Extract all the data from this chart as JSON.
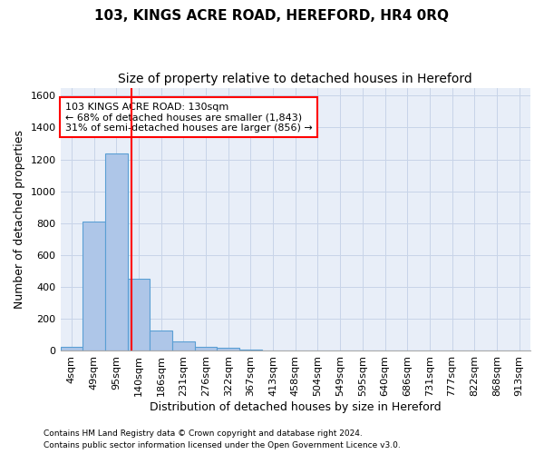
{
  "title": "103, KINGS ACRE ROAD, HEREFORD, HR4 0RQ",
  "subtitle": "Size of property relative to detached houses in Hereford",
  "xlabel": "Distribution of detached houses by size in Hereford",
  "ylabel": "Number of detached properties",
  "footer1": "Contains HM Land Registry data © Crown copyright and database right 2024.",
  "footer2": "Contains public sector information licensed under the Open Government Licence v3.0.",
  "categories": [
    "4sqm",
    "49sqm",
    "95sqm",
    "140sqm",
    "186sqm",
    "231sqm",
    "276sqm",
    "322sqm",
    "367sqm",
    "413sqm",
    "458sqm",
    "504sqm",
    "549sqm",
    "595sqm",
    "640sqm",
    "686sqm",
    "731sqm",
    "777sqm",
    "822sqm",
    "868sqm",
    "913sqm"
  ],
  "bar_values": [
    25,
    810,
    1240,
    455,
    125,
    60,
    28,
    18,
    10,
    5,
    0,
    0,
    0,
    0,
    0,
    0,
    0,
    0,
    0,
    0,
    0
  ],
  "bar_color": "#aec6e8",
  "bar_edge_color": "#5a9fd4",
  "annotation_line1": "103 KINGS ACRE ROAD: 130sqm",
  "annotation_line2": "← 68% of detached houses are smaller (1,843)",
  "annotation_line3": "31% of semi-detached houses are larger (856) →",
  "vline_x_index": 2.67,
  "vline_color": "red",
  "ylim": [
    0,
    1650
  ],
  "yticks": [
    0,
    200,
    400,
    600,
    800,
    1000,
    1200,
    1400,
    1600
  ],
  "grid_color": "#c8d4e8",
  "bg_color": "#e8eef8",
  "title_fontsize": 11,
  "subtitle_fontsize": 10,
  "annotation_fontsize": 8,
  "axis_label_fontsize": 9,
  "tick_fontsize": 8,
  "ylabel_fontsize": 9
}
